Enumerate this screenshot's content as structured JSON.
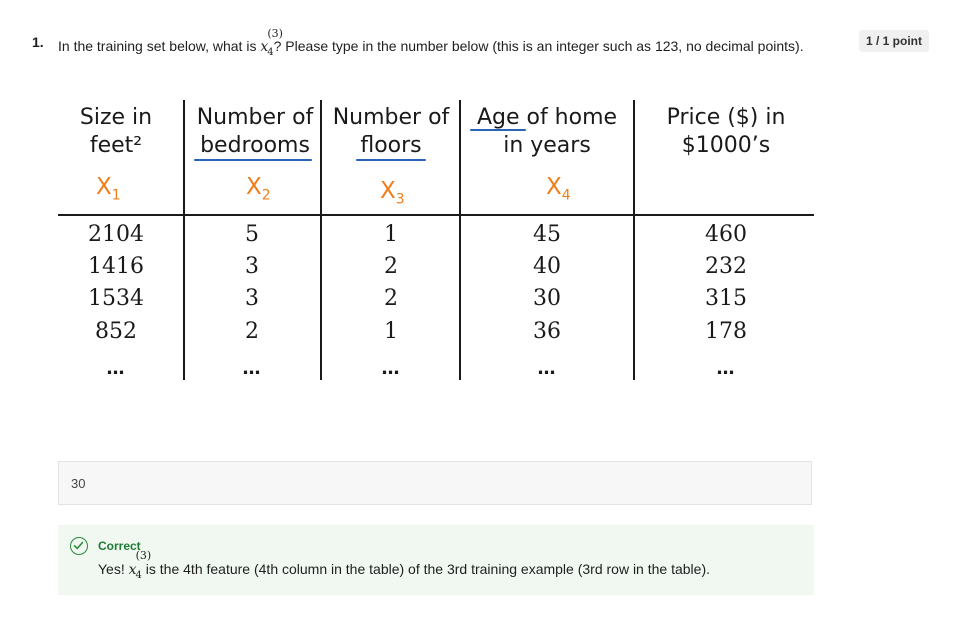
{
  "question": {
    "number": "1.",
    "text_before": "In the training set below, what is ",
    "math_var": "x",
    "math_sub": "4",
    "math_sup": "(3)",
    "text_after": "? Please type in the number below (this is an integer such as 123, no decimal points).",
    "points": "1 / 1 point"
  },
  "table": {
    "headers": [
      {
        "line1": "Size in",
        "line2": "feet²"
      },
      {
        "line1": "Number of",
        "line2": "bedrooms"
      },
      {
        "line1": "Number of",
        "line2": "floors"
      },
      {
        "line1": "Age of home",
        "line2": "in years"
      },
      {
        "line1": "Price ($) in",
        "line2": "$1000’s"
      }
    ],
    "feature_labels": [
      {
        "base": "X",
        "sub": "1"
      },
      {
        "base": "X",
        "sub": "2"
      },
      {
        "base": "X",
        "sub": "3"
      },
      {
        "base": "X",
        "sub": "4"
      }
    ],
    "rows": [
      [
        "2104",
        "5",
        "1",
        "45",
        "460"
      ],
      [
        "1416",
        "3",
        "2",
        "40",
        "232"
      ],
      [
        "1534",
        "3",
        "2",
        "30",
        "315"
      ],
      [
        "852",
        "2",
        "1",
        "36",
        "178"
      ]
    ],
    "ellipsis": "…"
  },
  "answer": {
    "value": "30"
  },
  "feedback": {
    "status": "Correct",
    "prefix": "Yes! ",
    "math_var": "x",
    "math_sub": "4",
    "math_sup": "(3)",
    "text": " is the 4th feature (4th column in the table) of the 3rd training example (3rd row in the table)."
  },
  "colors": {
    "accent": "#2b63b8",
    "correct": "#1e7b36",
    "handwriting": "#f07d1a"
  }
}
